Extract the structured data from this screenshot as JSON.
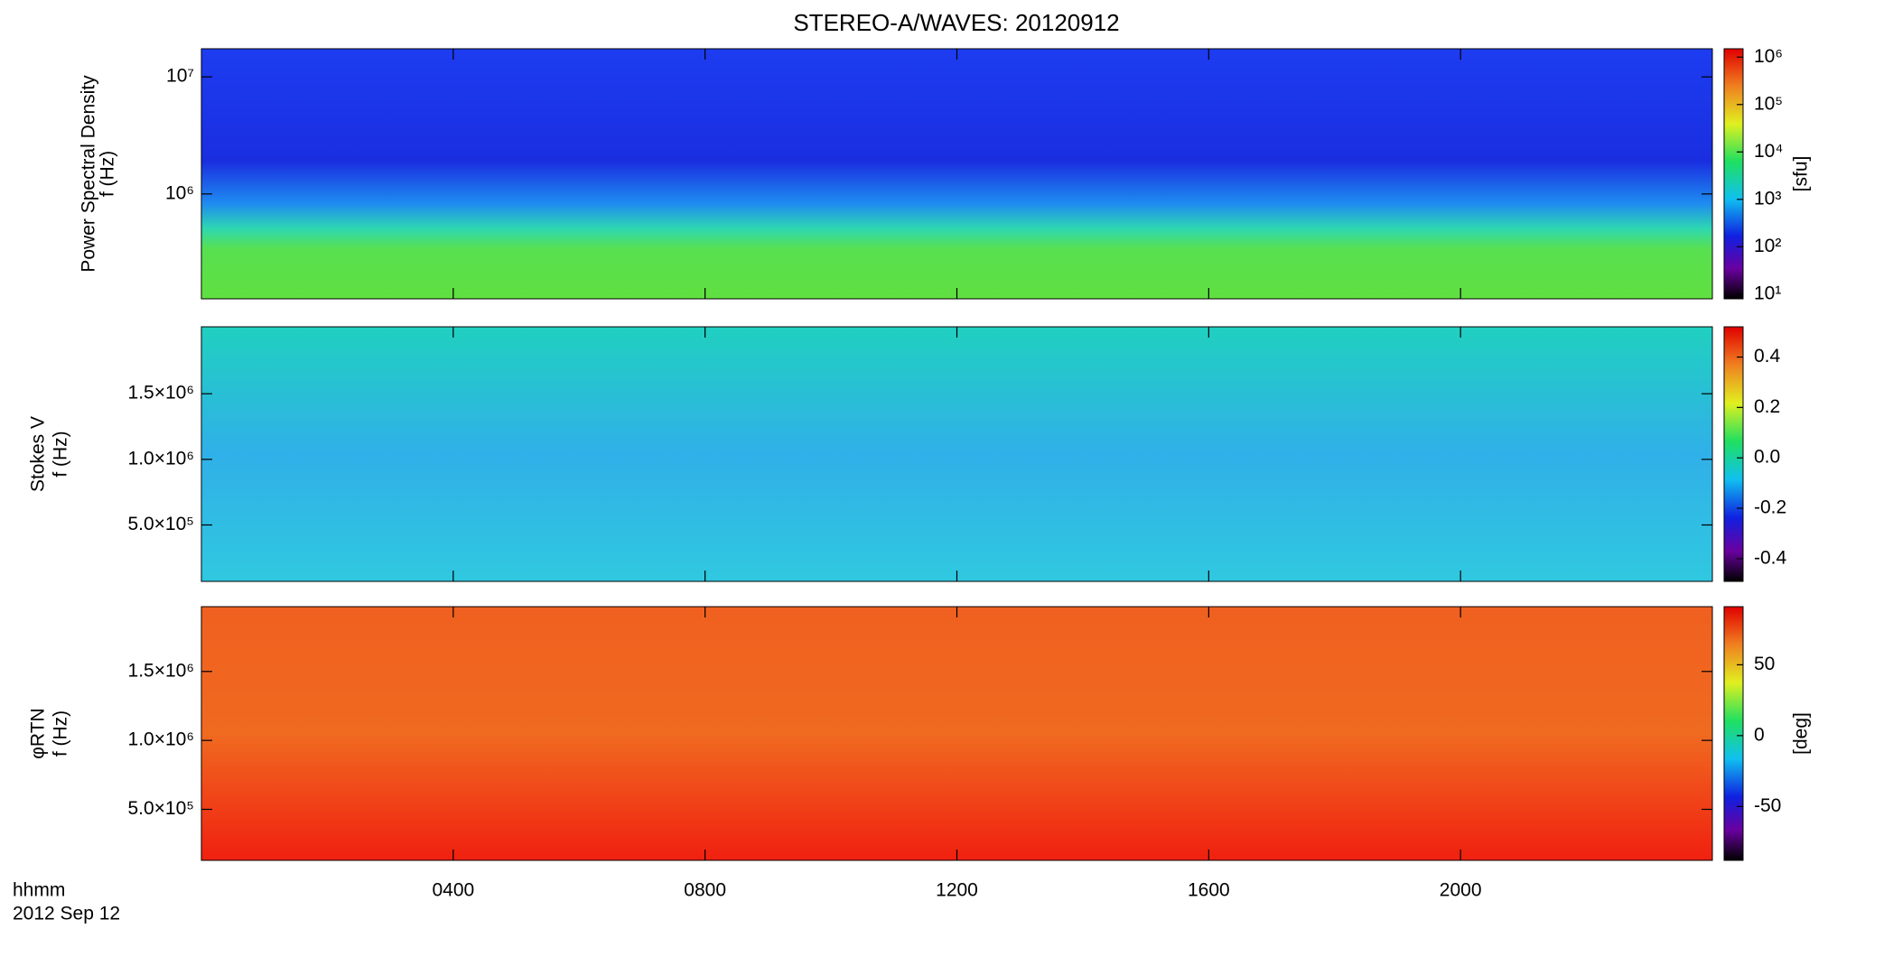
{
  "title": "STEREO-A/WAVES: 20120912",
  "x_axis": {
    "xlim": [
      0,
      24
    ],
    "xticks": [
      {
        "value": 4,
        "label": "0400"
      },
      {
        "value": 8,
        "label": "0800"
      },
      {
        "value": 12,
        "label": "1200"
      },
      {
        "value": 16,
        "label": "1600"
      },
      {
        "value": 20,
        "label": "2000"
      }
    ],
    "xlabel": "hhmm",
    "date": "2012 Sep 12"
  },
  "chart_data": [
    {
      "type": "heatmap",
      "ylabel": [
        "Power Spectral Density",
        "f (Hz)"
      ],
      "ylog": true,
      "ylim": [
        127000,
        17400000
      ],
      "yticks": [
        {
          "value": 1000000,
          "label": "10⁶"
        },
        {
          "value": 10000000,
          "label": "10⁷"
        }
      ],
      "colorbar": {
        "label": "[sfu]",
        "log": true,
        "lim": [
          8,
          1500000
        ],
        "ticks": [
          {
            "value": 10,
            "label": "10¹"
          },
          {
            "value": 100,
            "label": "10²"
          },
          {
            "value": 1000,
            "label": "10³"
          },
          {
            "value": 10000,
            "label": "10⁴"
          },
          {
            "value": 100000,
            "label": "10⁵"
          },
          {
            "value": 1000000,
            "label": "10⁶"
          }
        ]
      }
    },
    {
      "type": "heatmap",
      "ylabel": [
        "Stokes V",
        "f (Hz)"
      ],
      "ylog": false,
      "ylim": [
        70000,
        2010000
      ],
      "yticks": [
        {
          "value": 500000,
          "label": "5.0×10⁵"
        },
        {
          "value": 1000000,
          "label": "1.0×10⁶"
        },
        {
          "value": 1500000,
          "label": "1.5×10⁶"
        }
      ],
      "colorbar": {
        "label": "",
        "log": false,
        "lim": [
          -0.49,
          0.52
        ],
        "ticks": [
          -0.4,
          -0.2,
          {
            "value": 0,
            "label": "0.0"
          },
          0.2,
          0.4
        ]
      }
    },
    {
      "type": "heatmap",
      "ylabel": [
        "φRTN",
        "f (Hz)"
      ],
      "ylog": false,
      "ylim": [
        130000,
        1970000
      ],
      "yticks": [
        {
          "value": 500000,
          "label": "5.0×10⁵"
        },
        {
          "value": 1000000,
          "label": "1.0×10⁶"
        },
        {
          "value": 1500000,
          "label": "1.5×10⁶"
        }
      ],
      "colorbar": {
        "label": "[deg]",
        "log": false,
        "lim": [
          -88,
          91
        ],
        "ticks": [
          -50,
          0,
          50
        ]
      }
    }
  ]
}
